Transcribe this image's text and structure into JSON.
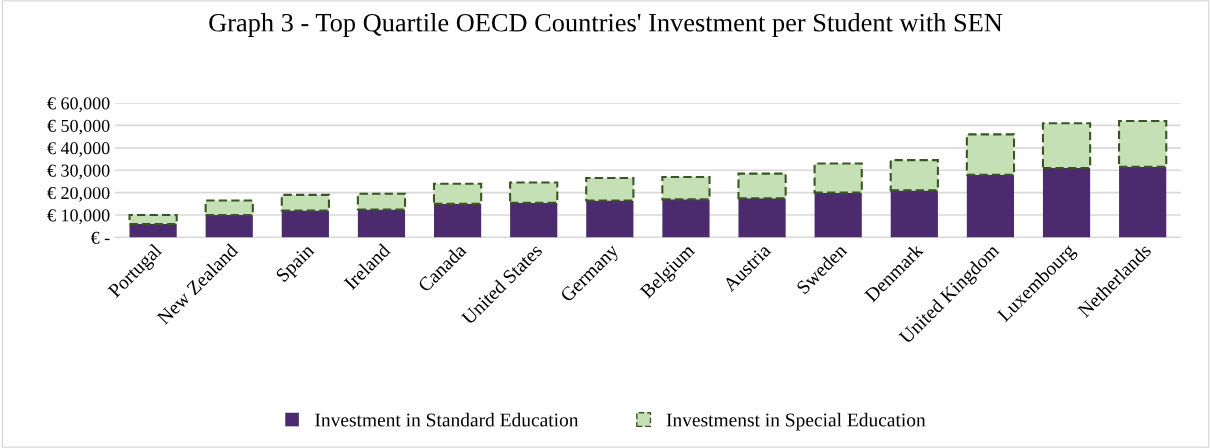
{
  "chart_data": {
    "type": "bar",
    "stacked": true,
    "title": "Graph 3 - Top Quartile OECD Countries' Investment per Student with SEN",
    "categories": [
      "Portugal",
      "New Zealand",
      "Spain",
      "Ireland",
      "Canada",
      "United States",
      "Germany",
      "Belgium",
      "Austria",
      "Sweden",
      "Denmark",
      "United Kingdom",
      "Luxembourg",
      "Netherlands"
    ],
    "series": [
      {
        "name": "Investment in Standard Education",
        "color": "#4b2a6e",
        "values": [
          6000,
          10000,
          12000,
          12500,
          15000,
          15500,
          16500,
          17000,
          17500,
          20000,
          21000,
          28000,
          31000,
          31500
        ]
      },
      {
        "name": "Investmenst in Special Education",
        "color": "#c5e0b4",
        "line_style": "dashed",
        "values": [
          4000,
          6500,
          7000,
          7000,
          9000,
          9000,
          10000,
          10000,
          11000,
          13000,
          13500,
          18000,
          20000,
          20500
        ]
      }
    ],
    "ylim": [
      0,
      60000
    ],
    "yticks": [
      {
        "value": 0,
        "label": "€ -"
      },
      {
        "value": 10000,
        "label": "€ 10,000"
      },
      {
        "value": 20000,
        "label": "€ 20,000"
      },
      {
        "value": 30000,
        "label": "€ 30,000"
      },
      {
        "value": 40000,
        "label": "€ 40,000"
      },
      {
        "value": 50000,
        "label": "€ 50,000"
      },
      {
        "value": 60000,
        "label": "€ 60,000"
      }
    ],
    "grid": "y",
    "legend": "bottom"
  }
}
